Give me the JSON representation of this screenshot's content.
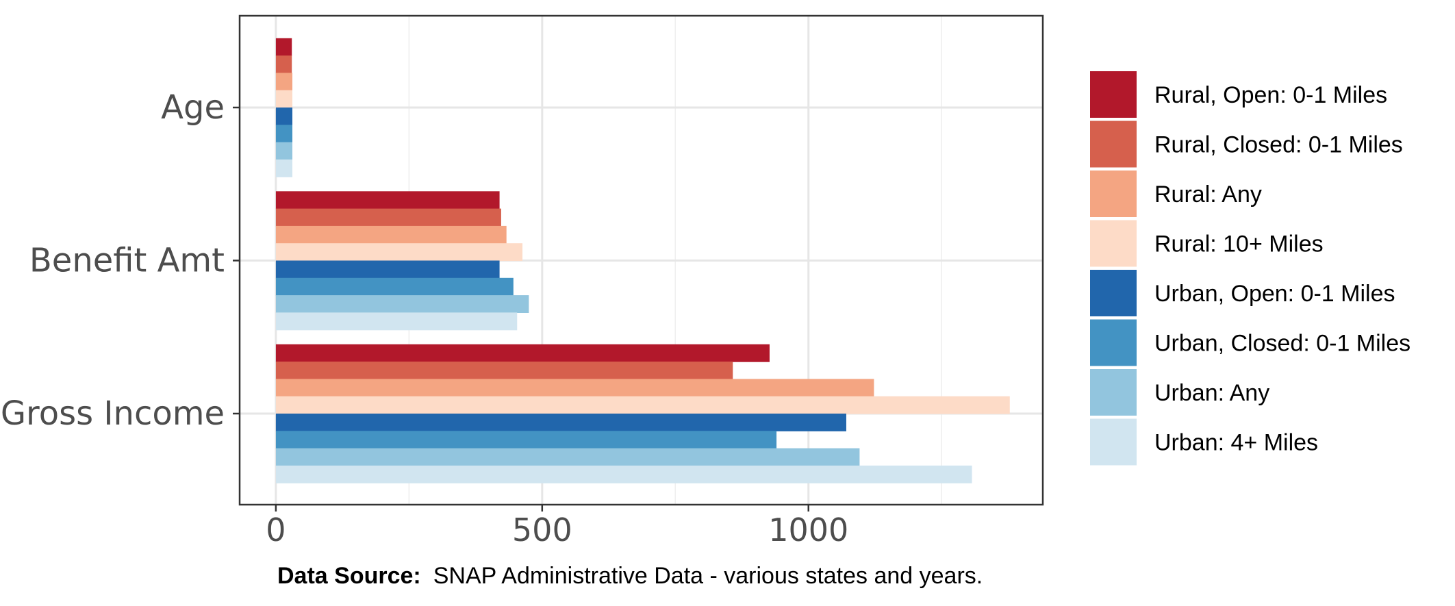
{
  "chart_data": {
    "type": "bar",
    "orientation": "horizontal",
    "categories": [
      "Age",
      "Benefit Amt",
      "Gross Income"
    ],
    "series": [
      {
        "name": "Rural, Open: 0-1 Miles",
        "color": "#b2182b",
        "values": [
          30,
          420,
          927
        ]
      },
      {
        "name": "Rural, Closed: 0-1 Miles",
        "color": "#d6604d",
        "values": [
          30,
          423,
          858
        ]
      },
      {
        "name": "Rural: Any",
        "color": "#f4a582",
        "values": [
          31,
          433,
          1123
        ]
      },
      {
        "name": "Rural: 10+ Miles",
        "color": "#fddbc7",
        "values": [
          31,
          463,
          1378
        ]
      },
      {
        "name": "Urban, Open: 0-1 Miles",
        "color": "#2166ac",
        "values": [
          31,
          420,
          1071
        ]
      },
      {
        "name": "Urban, Closed: 0-1 Miles",
        "color": "#4393c3",
        "values": [
          31,
          446,
          940
        ]
      },
      {
        "name": "Urban: Any",
        "color": "#92c5de",
        "values": [
          31,
          475,
          1096
        ]
      },
      {
        "name": "Urban: 4+ Miles",
        "color": "#d1e5f0",
        "values": [
          31,
          453,
          1307
        ]
      }
    ],
    "xticks": [
      0,
      500,
      1000
    ],
    "xlim": [
      -68,
      1440
    ],
    "xlabel": "",
    "ylabel": "",
    "title": "",
    "grid": true,
    "legend_position": "right"
  },
  "caption": {
    "label": "Data Source:",
    "text": "SNAP Administrative Data - various states and years."
  }
}
